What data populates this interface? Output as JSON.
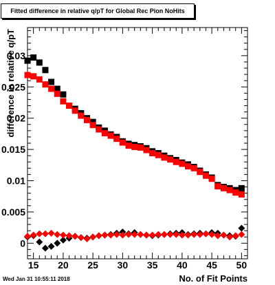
{
  "chart_data": {
    "type": "scatter",
    "title": "Fitted difference in relative q/pT for Global Rec Pion NoHits",
    "xlabel": "No. of Fit Points",
    "ylabel": "difference in relative q/pT",
    "xlim": [
      14,
      51
    ],
    "ylim": [
      -0.0025,
      0.0345
    ],
    "x_ticks": [
      15,
      20,
      25,
      30,
      35,
      40,
      45,
      50
    ],
    "y_ticks": [
      0,
      0.005,
      0.01,
      0.015,
      0.02,
      0.025,
      0.03
    ],
    "y_tick_labels": [
      "0",
      "0.005",
      "0.01",
      "0.015",
      "0.02",
      "0.025",
      "0.03"
    ],
    "grid": false,
    "x": [
      14,
      15,
      16,
      17,
      18,
      19,
      20,
      21,
      22,
      23,
      24,
      25,
      26,
      27,
      28,
      29,
      30,
      31,
      32,
      33,
      34,
      35,
      36,
      37,
      38,
      39,
      40,
      41,
      42,
      43,
      44,
      45,
      46,
      47,
      48,
      49,
      50
    ],
    "series": [
      {
        "marker": "square",
        "color": "#000000",
        "values": [
          0.0292,
          0.0297,
          0.0289,
          0.0277,
          0.0258,
          0.0247,
          0.0238,
          0.022,
          0.0215,
          0.0208,
          0.02,
          0.0194,
          0.0185,
          0.018,
          0.0174,
          0.017,
          0.0163,
          0.0159,
          0.0157,
          0.0155,
          0.0152,
          0.0147,
          0.0144,
          0.014,
          0.0136,
          0.0133,
          0.0129,
          0.0126,
          0.0122,
          0.0116,
          0.011,
          0.0105,
          0.0093,
          0.009,
          0.0088,
          0.0085,
          0.0088
        ]
      },
      {
        "marker": "square",
        "color": "#ff0000",
        "values": [
          0.0269,
          0.0267,
          0.0262,
          0.0254,
          0.0247,
          0.0239,
          0.0227,
          0.022,
          0.0212,
          0.0204,
          0.0197,
          0.0189,
          0.0182,
          0.0176,
          0.0172,
          0.0167,
          0.0161,
          0.0156,
          0.0154,
          0.0153,
          0.0149,
          0.0144,
          0.0141,
          0.0137,
          0.0134,
          0.013,
          0.0127,
          0.0123,
          0.012,
          0.0114,
          0.0108,
          0.0103,
          0.0091,
          0.0088,
          0.0085,
          0.0081,
          0.0078
        ]
      },
      {
        "marker": "diamond",
        "color": "#000000",
        "values": [
          0.001,
          0.0012,
          0.0002,
          -0.0008,
          -0.0005,
          0.0,
          0.0005,
          0.0008,
          0.0011,
          0.0009,
          0.0008,
          0.001,
          0.0012,
          0.0013,
          0.0014,
          0.0016,
          0.0018,
          0.0015,
          0.0017,
          0.0014,
          0.0013,
          0.0012,
          0.0013,
          0.0014,
          0.0015,
          0.0016,
          0.0017,
          0.0014,
          0.0015,
          0.0016,
          0.0015,
          0.0017,
          0.0016,
          0.0013,
          0.0012,
          0.0011,
          0.0024
        ]
      },
      {
        "marker": "diamond",
        "color": "#ff0000",
        "values": [
          0.0011,
          0.0013,
          0.0015,
          0.0015,
          0.0016,
          0.0014,
          0.0013,
          0.0012,
          0.0011,
          0.0009,
          0.0007,
          0.001,
          0.0012,
          0.0013,
          0.0013,
          0.0014,
          0.0013,
          0.0014,
          0.0014,
          0.0014,
          0.0013,
          0.0013,
          0.0014,
          0.0014,
          0.0014,
          0.0014,
          0.0013,
          0.0013,
          0.0014,
          0.0014,
          0.0015,
          0.0014,
          0.0012,
          0.0013,
          0.001,
          0.0012,
          0.0014
        ]
      }
    ]
  },
  "footer": {
    "timestamp": "Wed Jan 31 10:55:11 2018"
  }
}
